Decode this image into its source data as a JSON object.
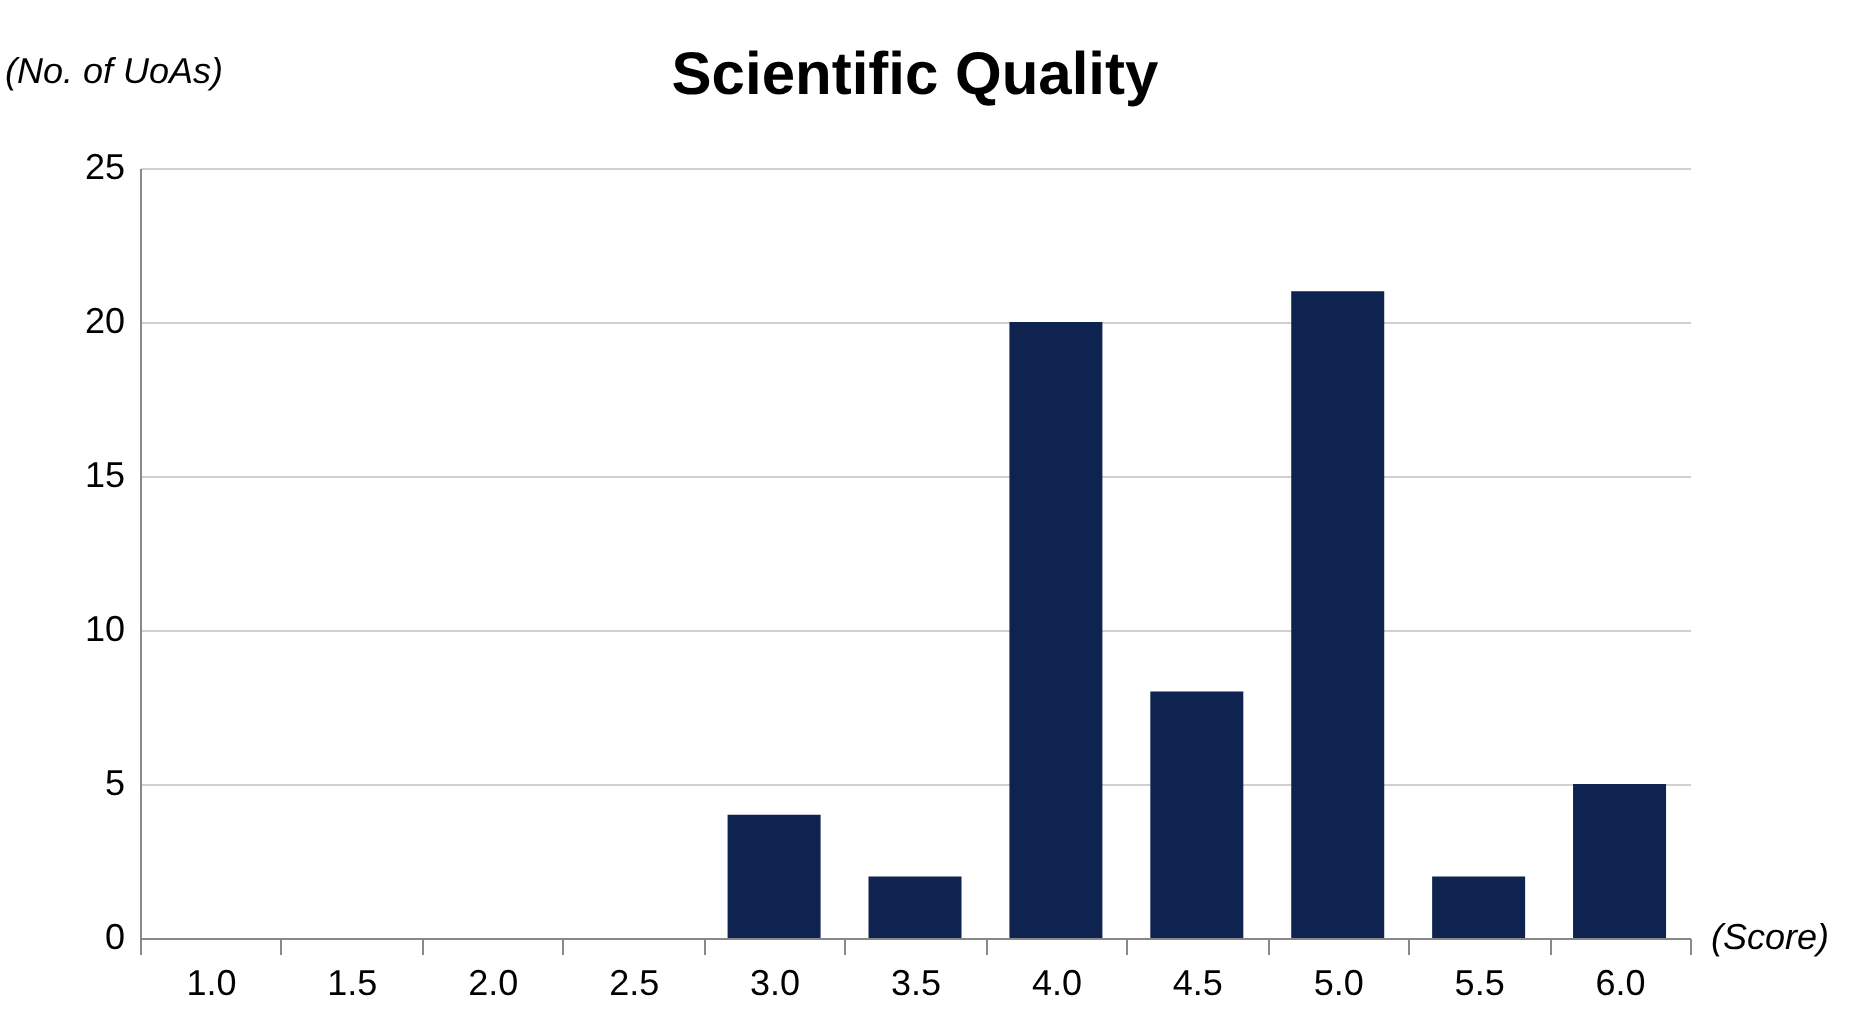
{
  "chart_data": {
    "type": "bar",
    "title": "Scientific Quality",
    "ylabel": "(No. of  UoAs)",
    "xlabel": "(Score)",
    "categories": [
      "1.0",
      "1.5",
      "2.0",
      "2.5",
      "3.0",
      "3.5",
      "4.0",
      "4.5",
      "5.0",
      "5.5",
      "6.0"
    ],
    "values": [
      0,
      0,
      0,
      0,
      4,
      2,
      20,
      8,
      21,
      2,
      5
    ],
    "color": "#0f2350",
    "ylim": [
      0,
      25
    ],
    "yticks": [
      0,
      5,
      10,
      15,
      20,
      25
    ],
    "grid": "y"
  }
}
